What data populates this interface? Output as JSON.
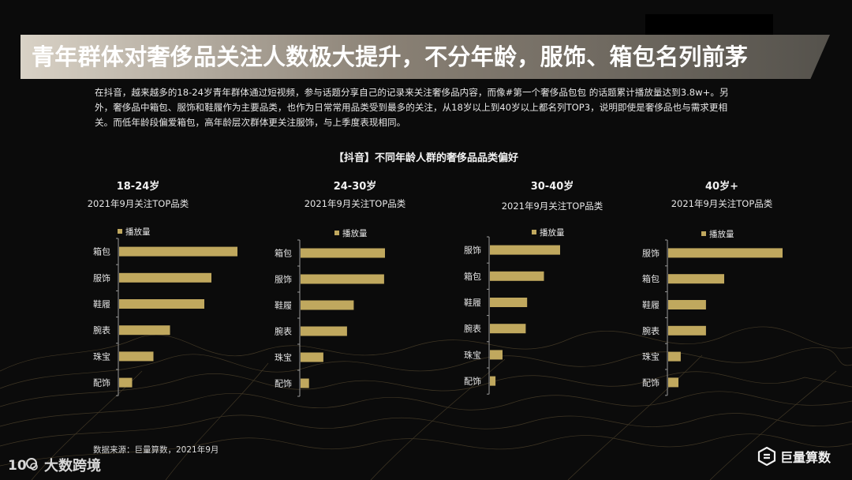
{
  "page": {
    "title": "青年群体对奢侈品关注人数极大提升，不分年龄，服饰、箱包名列前茅",
    "intro": "在抖音，越来越多的18-24岁青年群体通过短视频，参与话题分享自己的记录来关注奢侈品内容，而像#第一个奢侈品包包 的话题累计播放量达到3.8w+。另外，奢侈品中箱包、服饰和鞋履作为主要品类，也作为日常常用品类受到最多的关注，从18岁以上到40岁以上都名列TOP3，说明即使是奢侈品也与需求更相关。而低年龄段偏爱箱包，高年龄层次群体更关注服饰，与上季度表现相同。",
    "chart_heading": "【抖音】不同年龄人群的奢侈品品类偏好",
    "source": "数据来源：巨量算数，2021年9月",
    "brand_left": "大数跨境",
    "brand_left_mark": "10",
    "brand_right": "巨量算数"
  },
  "colors": {
    "bar": "#c0a85e",
    "axis": "#9a9a9a",
    "text": "#e6e6e6"
  },
  "chart_data": [
    {
      "type": "bar",
      "orientation": "horizontal",
      "title": "18-24岁",
      "subtitle": "2021年9月关注TOP品类",
      "legend": "播放量",
      "categories": [
        "箱包",
        "服饰",
        "鞋履",
        "腕表",
        "珠宝",
        "配饰"
      ],
      "values": [
        100,
        78,
        72,
        43,
        29,
        11
      ]
    },
    {
      "type": "bar",
      "orientation": "horizontal",
      "title": "24-30岁",
      "subtitle": "2021年9月关注TOP品类",
      "legend": "播放量",
      "categories": [
        "箱包",
        "服饰",
        "鞋履",
        "腕表",
        "珠宝",
        "配饰"
      ],
      "values": [
        100,
        99,
        63,
        55,
        27,
        10
      ]
    },
    {
      "type": "bar",
      "orientation": "horizontal",
      "title": "30-40岁",
      "subtitle": "2021年9月关注TOP品类",
      "legend": "播放量",
      "categories": [
        "服饰",
        "箱包",
        "鞋履",
        "腕表",
        "珠宝",
        "配饰"
      ],
      "values": [
        100,
        77,
        53,
        51,
        18,
        8
      ]
    },
    {
      "type": "bar",
      "orientation": "horizontal",
      "title": "40岁+",
      "subtitle": "2021年9月关注TOP品类",
      "legend": "播放量",
      "categories": [
        "服饰",
        "箱包",
        "鞋履",
        "腕表",
        "珠宝",
        "配饰"
      ],
      "values": [
        100,
        49,
        33,
        33,
        11,
        9
      ]
    }
  ]
}
